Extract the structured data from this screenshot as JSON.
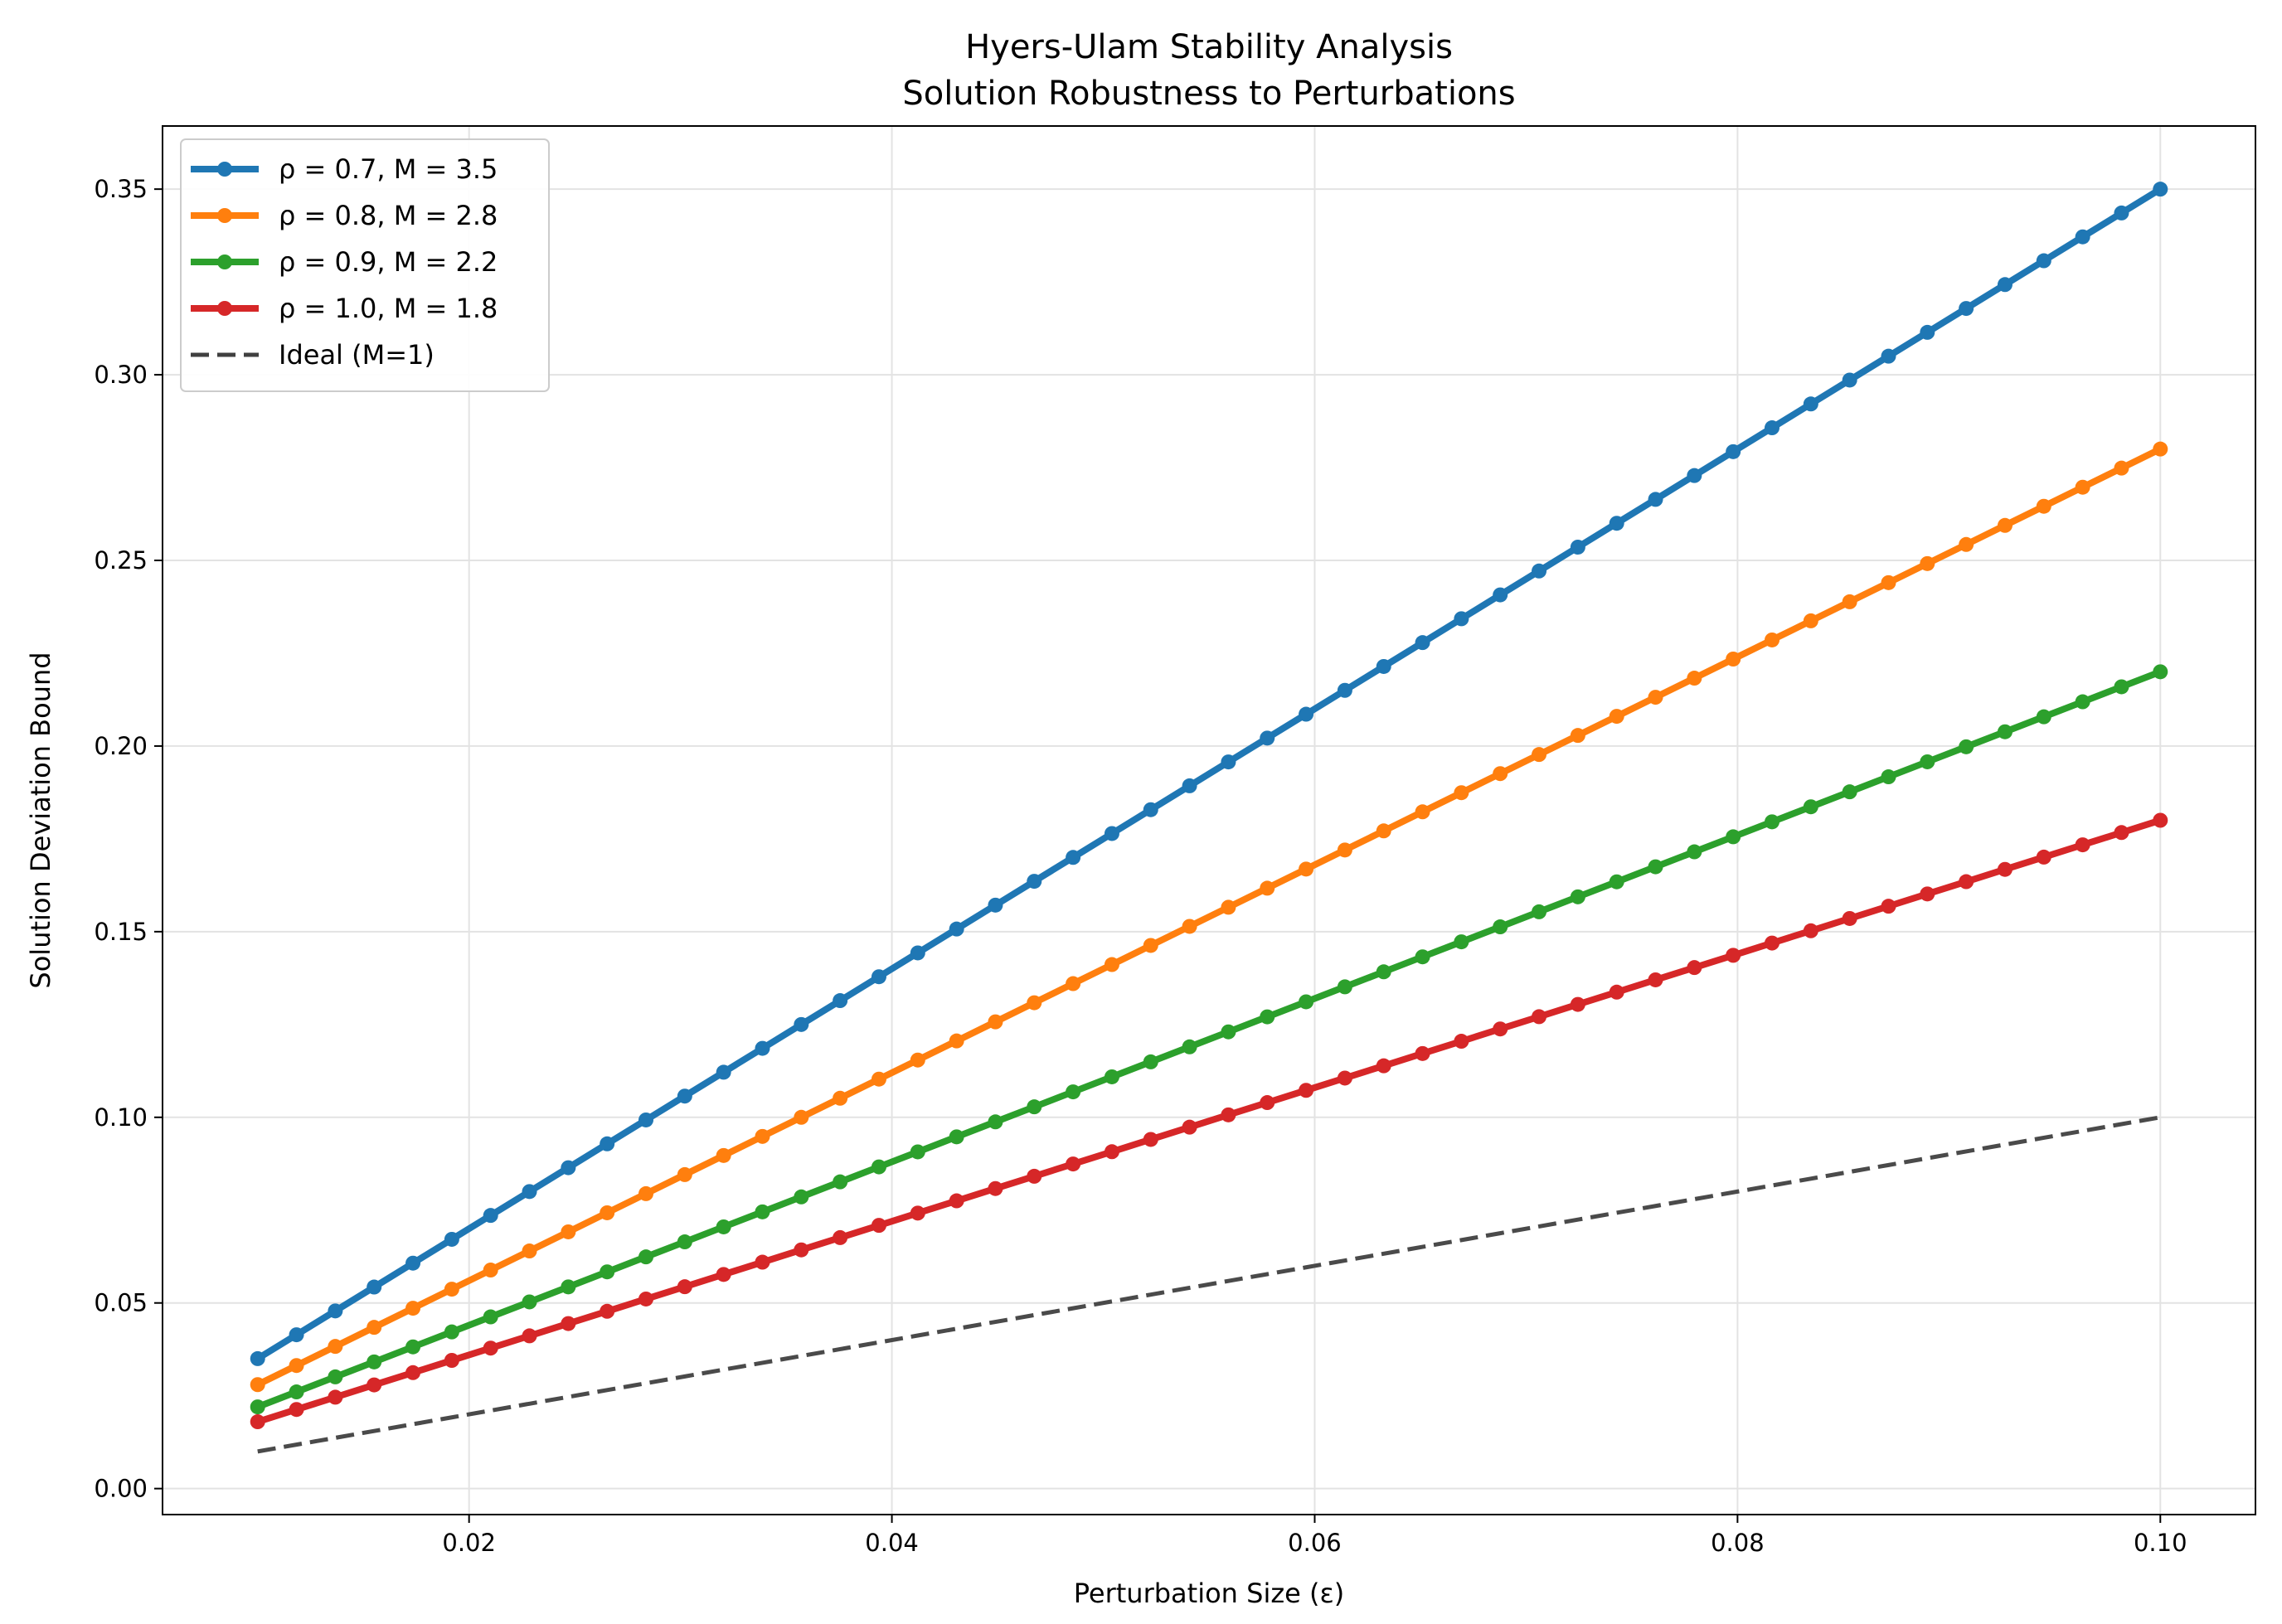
{
  "chart_data": {
    "type": "line",
    "title": "Hyers-Ulam Stability Analysis",
    "subtitle": "Solution Robustness to Perturbations",
    "xlabel": "Perturbation Size (ε)",
    "ylabel": "Solution Deviation Bound",
    "xlim": [
      0.0055,
      0.1045
    ],
    "ylim": [
      -0.007,
      0.367
    ],
    "xticks": [
      0.02,
      0.04,
      0.06,
      0.08,
      0.1
    ],
    "xtick_labels": [
      "0.02",
      "0.04",
      "0.06",
      "0.08",
      "0.10"
    ],
    "yticks": [
      0.0,
      0.05,
      0.1,
      0.15,
      0.2,
      0.25,
      0.3,
      0.35
    ],
    "ytick_labels": [
      "0.00",
      "0.05",
      "0.10",
      "0.15",
      "0.20",
      "0.25",
      "0.30",
      "0.35"
    ],
    "grid": true,
    "legend_position": "top-left",
    "x_range": {
      "start": 0.01,
      "end": 0.1,
      "num_points": 50
    },
    "series": [
      {
        "name": "ρ = 0.7, M = 3.5",
        "slope": 3.5,
        "color": "#1f77b4",
        "marker": "circle",
        "style": "solid"
      },
      {
        "name": "ρ = 0.8, M = 2.8",
        "slope": 2.8,
        "color": "#ff7f0e",
        "marker": "circle",
        "style": "solid"
      },
      {
        "name": "ρ = 0.9, M = 2.2",
        "slope": 2.2,
        "color": "#2ca02c",
        "marker": "circle",
        "style": "solid"
      },
      {
        "name": "ρ = 1.0, M = 1.8",
        "slope": 1.8,
        "color": "#d62728",
        "marker": "circle",
        "style": "solid"
      },
      {
        "name": "Ideal (M=1)",
        "slope": 1.0,
        "color": "#404040",
        "marker": "none",
        "style": "dashed"
      }
    ]
  }
}
